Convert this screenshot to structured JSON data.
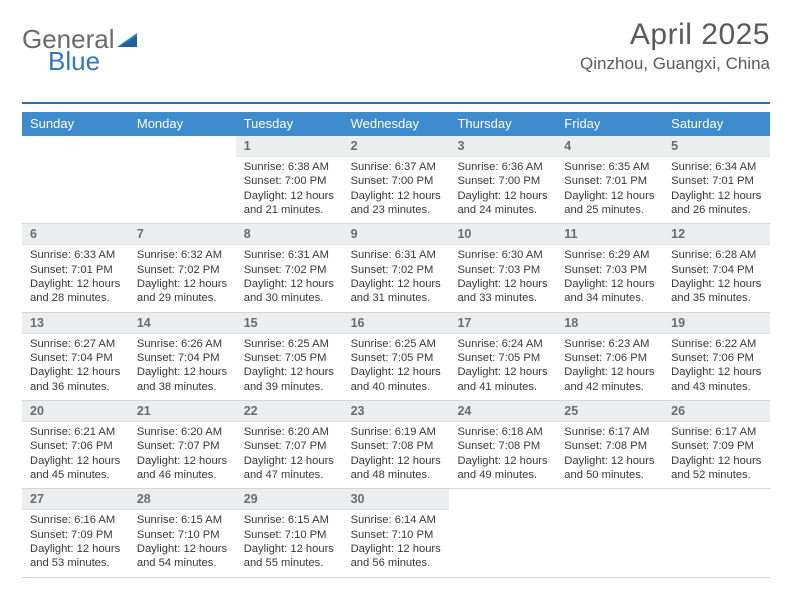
{
  "logo": {
    "part1": "General",
    "part2": "Blue"
  },
  "title": "April 2025",
  "subtitle": "Qinzhou, Guangxi, China",
  "colors": {
    "header_bg": "#3e8ccd",
    "header_text": "#ffffff",
    "datenum_bg": "#ecedee",
    "accent_line": "#2f6ea8",
    "page_bg": "#ffffff",
    "text": "#383838",
    "title_text": "#5a5a5a",
    "logo_gray": "#6a6a6a",
    "logo_blue": "#2f79c2"
  },
  "day_headers": [
    "Sunday",
    "Monday",
    "Tuesday",
    "Wednesday",
    "Thursday",
    "Friday",
    "Saturday"
  ],
  "weeks": [
    [
      {
        "blank": true
      },
      {
        "blank": true
      },
      {
        "date": "1",
        "sunrise": "Sunrise: 6:38 AM",
        "sunset": "Sunset: 7:00 PM",
        "daylight": "Daylight: 12 hours and 21 minutes."
      },
      {
        "date": "2",
        "sunrise": "Sunrise: 6:37 AM",
        "sunset": "Sunset: 7:00 PM",
        "daylight": "Daylight: 12 hours and 23 minutes."
      },
      {
        "date": "3",
        "sunrise": "Sunrise: 6:36 AM",
        "sunset": "Sunset: 7:00 PM",
        "daylight": "Daylight: 12 hours and 24 minutes."
      },
      {
        "date": "4",
        "sunrise": "Sunrise: 6:35 AM",
        "sunset": "Sunset: 7:01 PM",
        "daylight": "Daylight: 12 hours and 25 minutes."
      },
      {
        "date": "5",
        "sunrise": "Sunrise: 6:34 AM",
        "sunset": "Sunset: 7:01 PM",
        "daylight": "Daylight: 12 hours and 26 minutes."
      }
    ],
    [
      {
        "date": "6",
        "sunrise": "Sunrise: 6:33 AM",
        "sunset": "Sunset: 7:01 PM",
        "daylight": "Daylight: 12 hours and 28 minutes."
      },
      {
        "date": "7",
        "sunrise": "Sunrise: 6:32 AM",
        "sunset": "Sunset: 7:02 PM",
        "daylight": "Daylight: 12 hours and 29 minutes."
      },
      {
        "date": "8",
        "sunrise": "Sunrise: 6:31 AM",
        "sunset": "Sunset: 7:02 PM",
        "daylight": "Daylight: 12 hours and 30 minutes."
      },
      {
        "date": "9",
        "sunrise": "Sunrise: 6:31 AM",
        "sunset": "Sunset: 7:02 PM",
        "daylight": "Daylight: 12 hours and 31 minutes."
      },
      {
        "date": "10",
        "sunrise": "Sunrise: 6:30 AM",
        "sunset": "Sunset: 7:03 PM",
        "daylight": "Daylight: 12 hours and 33 minutes."
      },
      {
        "date": "11",
        "sunrise": "Sunrise: 6:29 AM",
        "sunset": "Sunset: 7:03 PM",
        "daylight": "Daylight: 12 hours and 34 minutes."
      },
      {
        "date": "12",
        "sunrise": "Sunrise: 6:28 AM",
        "sunset": "Sunset: 7:04 PM",
        "daylight": "Daylight: 12 hours and 35 minutes."
      }
    ],
    [
      {
        "date": "13",
        "sunrise": "Sunrise: 6:27 AM",
        "sunset": "Sunset: 7:04 PM",
        "daylight": "Daylight: 12 hours and 36 minutes."
      },
      {
        "date": "14",
        "sunrise": "Sunrise: 6:26 AM",
        "sunset": "Sunset: 7:04 PM",
        "daylight": "Daylight: 12 hours and 38 minutes."
      },
      {
        "date": "15",
        "sunrise": "Sunrise: 6:25 AM",
        "sunset": "Sunset: 7:05 PM",
        "daylight": "Daylight: 12 hours and 39 minutes."
      },
      {
        "date": "16",
        "sunrise": "Sunrise: 6:25 AM",
        "sunset": "Sunset: 7:05 PM",
        "daylight": "Daylight: 12 hours and 40 minutes."
      },
      {
        "date": "17",
        "sunrise": "Sunrise: 6:24 AM",
        "sunset": "Sunset: 7:05 PM",
        "daylight": "Daylight: 12 hours and 41 minutes."
      },
      {
        "date": "18",
        "sunrise": "Sunrise: 6:23 AM",
        "sunset": "Sunset: 7:06 PM",
        "daylight": "Daylight: 12 hours and 42 minutes."
      },
      {
        "date": "19",
        "sunrise": "Sunrise: 6:22 AM",
        "sunset": "Sunset: 7:06 PM",
        "daylight": "Daylight: 12 hours and 43 minutes."
      }
    ],
    [
      {
        "date": "20",
        "sunrise": "Sunrise: 6:21 AM",
        "sunset": "Sunset: 7:06 PM",
        "daylight": "Daylight: 12 hours and 45 minutes."
      },
      {
        "date": "21",
        "sunrise": "Sunrise: 6:20 AM",
        "sunset": "Sunset: 7:07 PM",
        "daylight": "Daylight: 12 hours and 46 minutes."
      },
      {
        "date": "22",
        "sunrise": "Sunrise: 6:20 AM",
        "sunset": "Sunset: 7:07 PM",
        "daylight": "Daylight: 12 hours and 47 minutes."
      },
      {
        "date": "23",
        "sunrise": "Sunrise: 6:19 AM",
        "sunset": "Sunset: 7:08 PM",
        "daylight": "Daylight: 12 hours and 48 minutes."
      },
      {
        "date": "24",
        "sunrise": "Sunrise: 6:18 AM",
        "sunset": "Sunset: 7:08 PM",
        "daylight": "Daylight: 12 hours and 49 minutes."
      },
      {
        "date": "25",
        "sunrise": "Sunrise: 6:17 AM",
        "sunset": "Sunset: 7:08 PM",
        "daylight": "Daylight: 12 hours and 50 minutes."
      },
      {
        "date": "26",
        "sunrise": "Sunrise: 6:17 AM",
        "sunset": "Sunset: 7:09 PM",
        "daylight": "Daylight: 12 hours and 52 minutes."
      }
    ],
    [
      {
        "date": "27",
        "sunrise": "Sunrise: 6:16 AM",
        "sunset": "Sunset: 7:09 PM",
        "daylight": "Daylight: 12 hours and 53 minutes."
      },
      {
        "date": "28",
        "sunrise": "Sunrise: 6:15 AM",
        "sunset": "Sunset: 7:10 PM",
        "daylight": "Daylight: 12 hours and 54 minutes."
      },
      {
        "date": "29",
        "sunrise": "Sunrise: 6:15 AM",
        "sunset": "Sunset: 7:10 PM",
        "daylight": "Daylight: 12 hours and 55 minutes."
      },
      {
        "date": "30",
        "sunrise": "Sunrise: 6:14 AM",
        "sunset": "Sunset: 7:10 PM",
        "daylight": "Daylight: 12 hours and 56 minutes."
      },
      {
        "blank": true
      },
      {
        "blank": true
      },
      {
        "blank": true
      }
    ]
  ]
}
